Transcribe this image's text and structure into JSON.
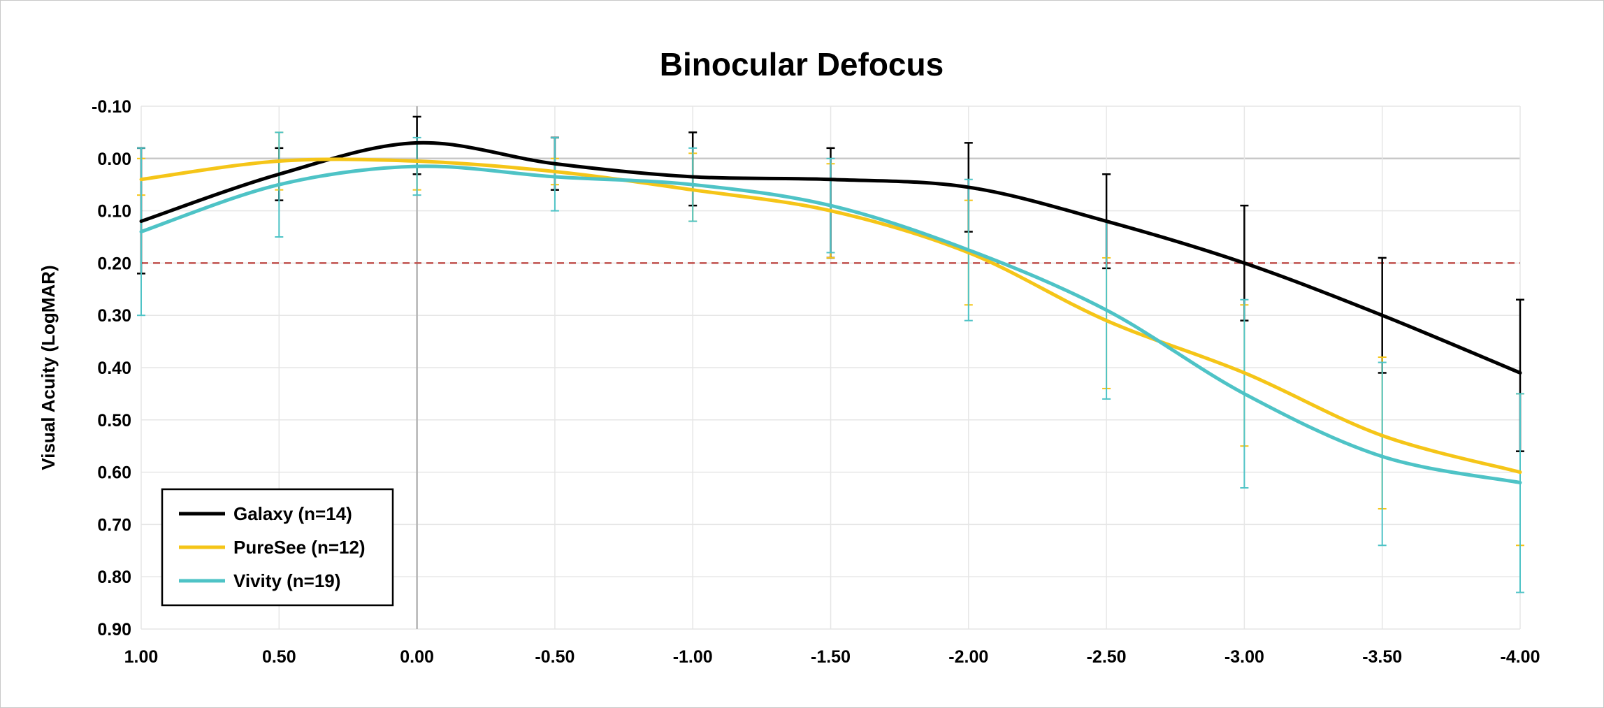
{
  "chart_data": {
    "type": "line",
    "title": "Binocular Defocus",
    "xlabel": "",
    "ylabel": "Visual Acuity (LogMAR)",
    "x_ticks": [
      "1.00",
      "0.50",
      "0.00",
      "-0.50",
      "-1.00",
      "-1.50",
      "-2.00",
      "-2.50",
      "-3.00",
      "-3.50",
      "-4.00"
    ],
    "y_ticks": [
      "-0.10",
      "0.00",
      "0.10",
      "0.20",
      "0.30",
      "0.40",
      "0.50",
      "0.60",
      "0.70",
      "0.80",
      "0.90"
    ],
    "x": [
      1.0,
      0.5,
      0.0,
      -0.5,
      -1.0,
      -1.5,
      -2.0,
      -2.5,
      -3.0,
      -3.5,
      -4.0
    ],
    "xlim": [
      1.0,
      -4.0
    ],
    "ylim": [
      -0.1,
      0.9
    ],
    "y_inverted": true,
    "grid": true,
    "legend_position": "bottom-left",
    "reference_line": {
      "y": 0.2,
      "style": "dashed",
      "color": "#c0504d"
    },
    "series": [
      {
        "name": "Galaxy (n=14)",
        "color": "#000000",
        "values": [
          0.12,
          0.03,
          -0.03,
          0.01,
          0.035,
          0.04,
          0.055,
          0.12,
          0.2,
          0.3,
          0.41
        ],
        "error_low": [
          -0.02,
          -0.02,
          -0.08,
          -0.04,
          -0.05,
          -0.02,
          -0.03,
          0.03,
          0.09,
          0.19,
          0.27
        ],
        "error_high": [
          0.22,
          0.08,
          0.03,
          0.06,
          0.09,
          0.19,
          0.14,
          0.21,
          0.31,
          0.41,
          0.56
        ]
      },
      {
        "name": "PureSee (n=12)",
        "color": "#f5c518",
        "values": [
          0.04,
          0.005,
          0.005,
          0.025,
          0.06,
          0.1,
          0.18,
          0.31,
          0.41,
          0.53,
          0.6
        ],
        "error_low": [
          0.0,
          -0.05,
          -0.03,
          0.0,
          -0.01,
          0.01,
          0.08,
          0.19,
          0.28,
          0.38,
          0.45
        ],
        "error_high": [
          0.07,
          0.06,
          0.06,
          0.05,
          0.12,
          0.19,
          0.28,
          0.44,
          0.55,
          0.67,
          0.74
        ]
      },
      {
        "name": "Vivity (n=19)",
        "color": "#4ec3c6",
        "values": [
          0.14,
          0.05,
          0.015,
          0.035,
          0.05,
          0.09,
          0.175,
          0.29,
          0.45,
          0.57,
          0.62
        ],
        "error_low": [
          -0.02,
          -0.05,
          -0.04,
          -0.04,
          -0.02,
          0.0,
          0.04,
          0.12,
          0.27,
          0.39,
          0.45
        ],
        "error_high": [
          0.3,
          0.15,
          0.07,
          0.1,
          0.12,
          0.18,
          0.31,
          0.46,
          0.63,
          0.74,
          0.83
        ]
      }
    ]
  }
}
